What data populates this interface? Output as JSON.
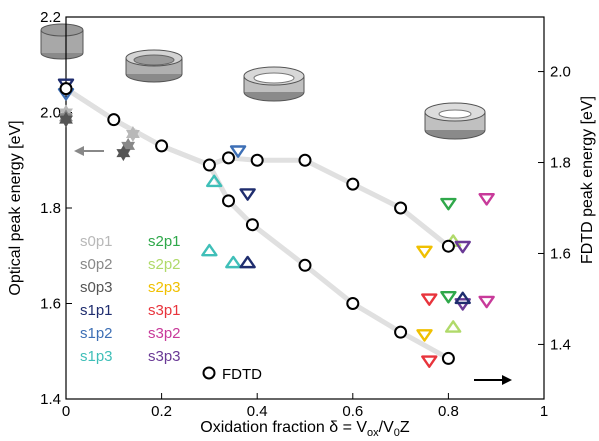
{
  "colors": {
    "s0p1": "#b8b8b8",
    "s0p2": "#888888",
    "s0p3": "#555555",
    "s1p1": "#1f2d6e",
    "s1p2": "#3d6fb5",
    "s1p3": "#3fbfb8",
    "s2p1": "#2fa84a",
    "s2p2": "#b0da6a",
    "s2p3": "#f0c000",
    "s3p1": "#e8343c",
    "s3p2": "#c83a9a",
    "s3p3": "#6a3a96",
    "fdtd": "#000000",
    "curve": "#e0e0e0"
  },
  "chart_data": {
    "type": "scatter",
    "xlabel": "Oxidation fraction δ = V",
    "xlabel_sub1": "ox",
    "xlabel_mid": "/V",
    "xlabel_sub2": "0",
    "xlabel_end": "Z",
    "ylabel": "Optical peak energy [eV]",
    "y2label": "FDTD peak energy [eV]",
    "xlim": [
      0,
      1
    ],
    "ylim": [
      1.4,
      2.2
    ],
    "y2lim": [
      1.28,
      2.12
    ],
    "xticks": [
      "0",
      "0.2",
      "0.4",
      "0.6",
      "0.8",
      "1"
    ],
    "xtick_values": [
      0,
      0.2,
      0.4,
      0.6,
      0.8,
      1.0
    ],
    "yticks": [
      "1.4",
      "1.6",
      "1.8",
      "2.0",
      "2.2"
    ],
    "ytick_values": [
      1.4,
      1.6,
      1.8,
      2.0,
      2.2
    ],
    "y2ticks": [
      "1.4",
      "1.6",
      "1.8",
      "2.0"
    ],
    "y2tick_values": [
      1.4,
      1.6,
      1.8,
      2.0
    ],
    "series": [
      {
        "name": "s0p1",
        "color_key": "s0p1",
        "marker": "hexagram",
        "points": [
          [
            0,
            2.0
          ],
          [
            0.14,
            1.955
          ]
        ]
      },
      {
        "name": "s0p2",
        "color_key": "s0p2",
        "marker": "hexagram",
        "points": [
          [
            0,
            1.99
          ],
          [
            0.13,
            1.93
          ]
        ]
      },
      {
        "name": "s0p3",
        "color_key": "s0p3",
        "marker": "hexagram",
        "points": [
          [
            0,
            1.985
          ],
          [
            0.12,
            1.915
          ]
        ]
      },
      {
        "name": "s1p1",
        "color_key": "s1p1",
        "marker": "triangle-down",
        "points": [
          [
            0,
            2.06
          ],
          [
            0.38,
            1.83
          ]
        ]
      },
      {
        "name": "s1p2",
        "color_key": "s1p2",
        "marker": "triangle-down",
        "points": [
          [
            0,
            2.04
          ],
          [
            0.36,
            1.92
          ]
        ]
      },
      {
        "name": "s1p3",
        "color_key": "s1p3",
        "marker": "triangle-up",
        "points": [
          [
            0.31,
            1.855
          ],
          [
            0.3,
            1.71
          ],
          [
            0.35,
            1.685
          ]
        ]
      },
      {
        "name": "s2p1",
        "color_key": "s2p1",
        "marker": "triangle-down",
        "points": [
          [
            0.8,
            1.81
          ],
          [
            0.8,
            1.615
          ]
        ]
      },
      {
        "name": "s2p2",
        "color_key": "s2p2",
        "marker": "triangle-up",
        "points": [
          [
            0.81,
            1.73
          ],
          [
            0.81,
            1.55
          ]
        ]
      },
      {
        "name": "s2p3",
        "color_key": "s2p3",
        "marker": "triangle-down",
        "points": [
          [
            0.75,
            1.71
          ],
          [
            0.75,
            1.535
          ]
        ]
      },
      {
        "name": "s3p1",
        "color_key": "s3p1",
        "marker": "triangle-down",
        "points": [
          [
            0.76,
            1.61
          ],
          [
            0.76,
            1.48
          ]
        ]
      },
      {
        "name": "s3p2",
        "color_key": "s3p2",
        "marker": "triangle-down",
        "points": [
          [
            0.88,
            1.82
          ],
          [
            0.88,
            1.605
          ]
        ]
      },
      {
        "name": "s3p3",
        "color_key": "s3p3",
        "marker": "triangle-down",
        "points": [
          [
            0.83,
            1.72
          ],
          [
            0.83,
            1.6
          ]
        ]
      },
      {
        "name": "s1p1 (up)",
        "color_key": "s1p1",
        "marker": "triangle-up",
        "points": [
          [
            0.38,
            1.685
          ],
          [
            0.83,
            1.61
          ]
        ]
      }
    ],
    "fdtd_points": [
      [
        0,
        2.05
      ],
      [
        0.1,
        1.985
      ],
      [
        0.2,
        1.93
      ],
      [
        0.3,
        1.89
      ],
      [
        0.34,
        1.905
      ],
      [
        0.4,
        1.9
      ],
      [
        0.5,
        1.9
      ],
      [
        0.6,
        1.85
      ],
      [
        0.7,
        1.8
      ],
      [
        0.8,
        1.72
      ],
      [
        0.34,
        1.815
      ],
      [
        0.39,
        1.765
      ],
      [
        0.5,
        1.68
      ],
      [
        0.6,
        1.6
      ],
      [
        0.7,
        1.54
      ],
      [
        0.8,
        1.485
      ]
    ],
    "legend": [
      "s0p1",
      "s0p2",
      "s0p3",
      "s1p1",
      "s1p2",
      "s1p3",
      "s2p1",
      "s2p2",
      "s2p3",
      "s3p1",
      "s3p2",
      "s3p3",
      "FDTD"
    ],
    "legend_placement": "bottom-left",
    "grid": false
  }
}
